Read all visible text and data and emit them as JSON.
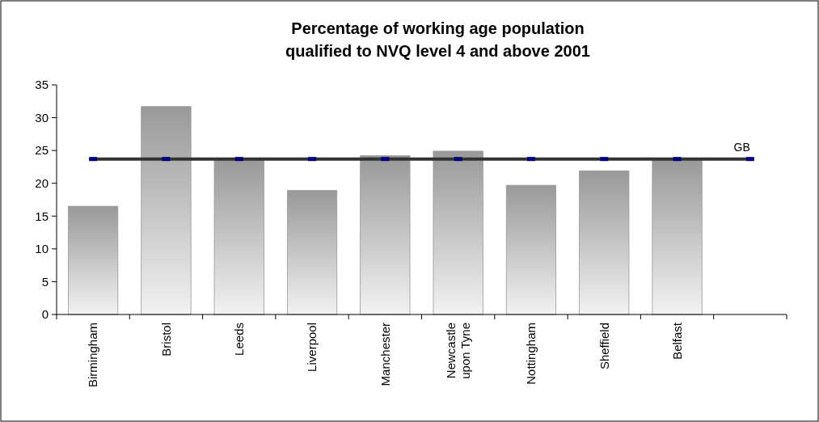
{
  "chart_data": {
    "type": "bar",
    "title": "Percentage of working age population\nqualified to NVQ level 4 and above 2001",
    "categories": [
      "Birmingham",
      "Bristol",
      "Leeds",
      "Liverpool",
      "Manchester",
      "Newcastle upon Tyne",
      "Nottingham",
      "Sheffield",
      "Belfast",
      null
    ],
    "series": [
      {
        "color": "#999999",
        "values": [
          16.5,
          31.7,
          23.6,
          18.9,
          24.2,
          24.9,
          19.7,
          21.9,
          23.8,
          null
        ]
      },
      {
        "type": "line",
        "name": "GB",
        "color": "#333333",
        "marker": "square",
        "values": [
          23.7,
          23.7,
          23.7,
          23.7,
          23.7,
          23.7,
          23.7,
          23.7,
          23.7,
          23.7
        ]
      }
    ],
    "ylim": [
      0,
      35
    ],
    "yticks": [
      0,
      5,
      10,
      15,
      20,
      25,
      30,
      35
    ],
    "grid": false
  }
}
